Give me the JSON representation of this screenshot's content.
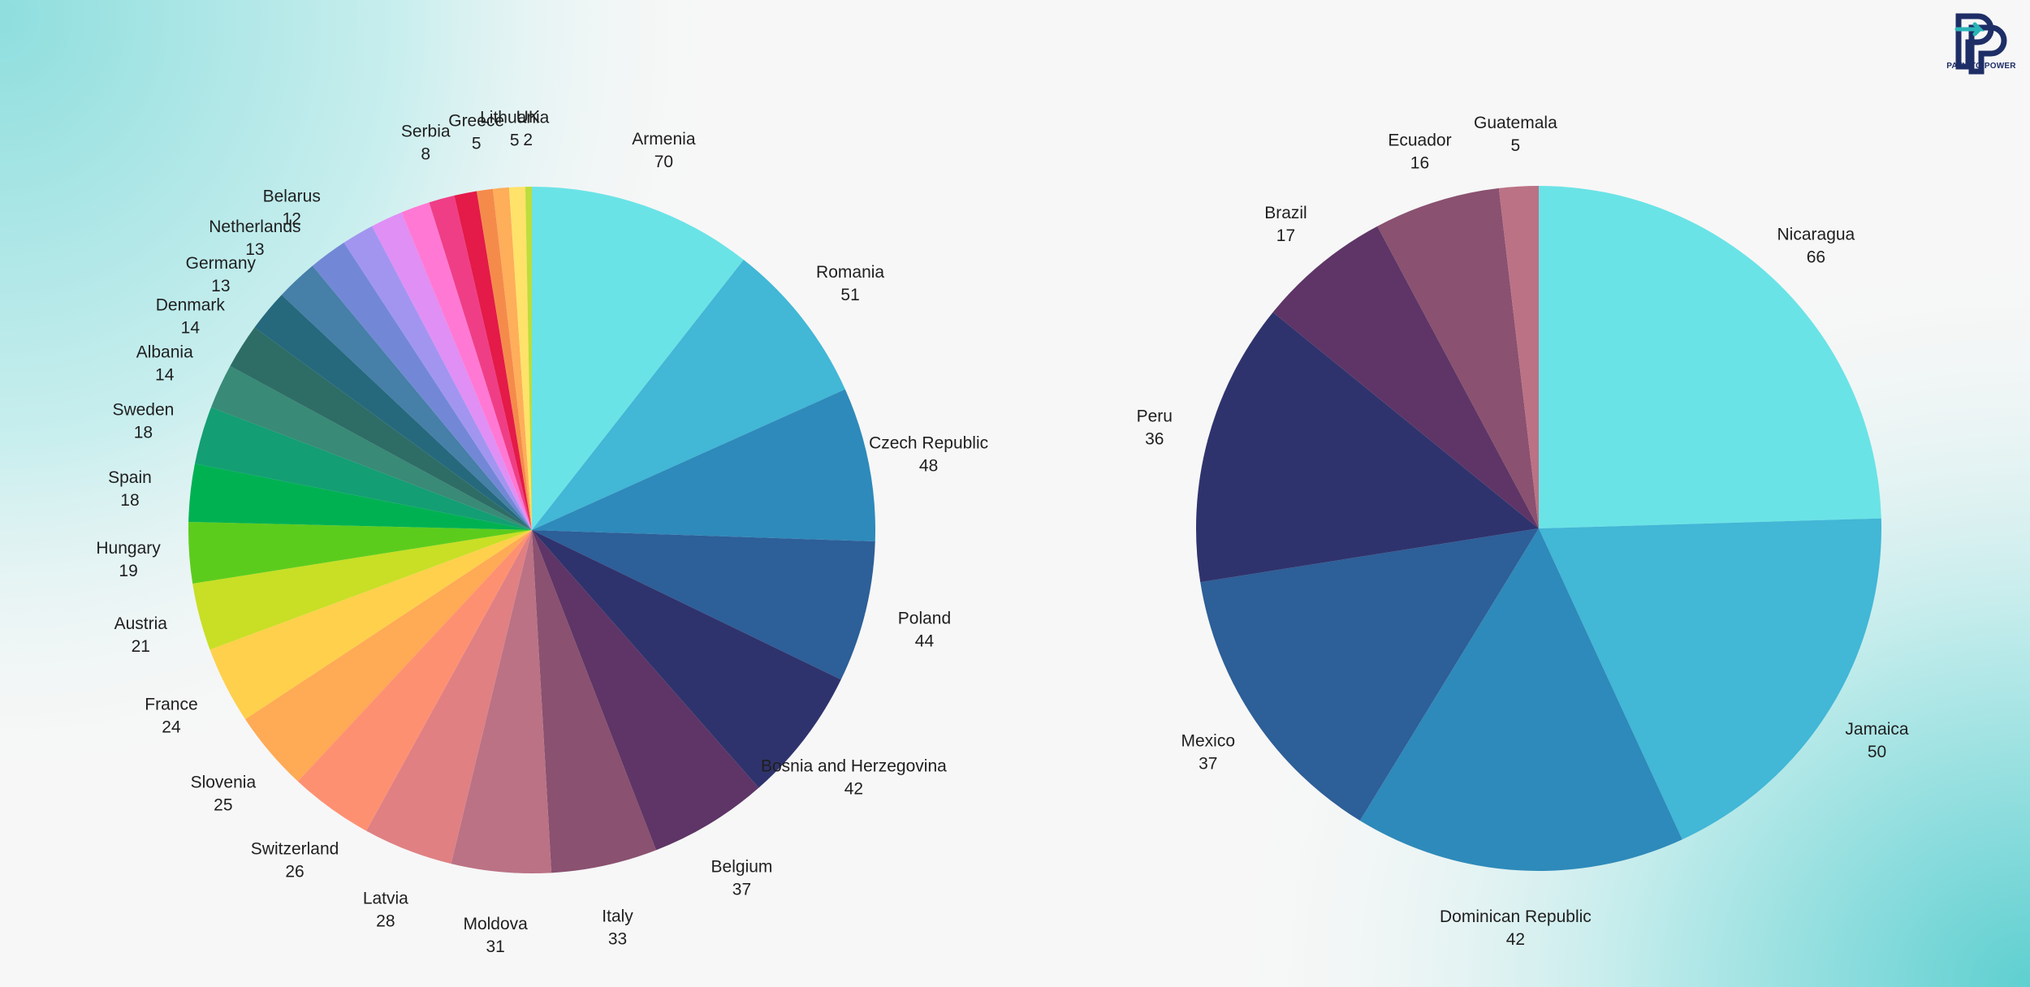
{
  "brand": {
    "logo_text": "PATH TO POWER",
    "colors": {
      "navy": "#1e2e66",
      "teal": "#2bb5b8"
    }
  },
  "chart_data": [
    {
      "type": "pie",
      "title": "",
      "start": "top",
      "direction": "clockwise",
      "slices": [
        {
          "label": "Armenia",
          "value": 70,
          "color": "#6ae3e6"
        },
        {
          "label": "Romania",
          "value": 51,
          "color": "#42b7d6"
        },
        {
          "label": "Czech Republic",
          "value": 48,
          "color": "#2e8aba"
        },
        {
          "label": "Poland",
          "value": 44,
          "color": "#2d5f98"
        },
        {
          "label": "Bosnia and Herzegovina",
          "value": 42,
          "color": "#2f336d"
        },
        {
          "label": "Belgium",
          "value": 37,
          "color": "#5e3566"
        },
        {
          "label": "Italy",
          "value": 33,
          "color": "#8a5170"
        },
        {
          "label": "Moldova",
          "value": 31,
          "color": "#bb7285"
        },
        {
          "label": "Latvia",
          "value": 28,
          "color": "#e08083"
        },
        {
          "label": "Switzerland",
          "value": 26,
          "color": "#fe9072"
        },
        {
          "label": "Slovenia",
          "value": 25,
          "color": "#ffaa55"
        },
        {
          "label": "France",
          "value": 24,
          "color": "#ffd04c"
        },
        {
          "label": "Austria",
          "value": 21,
          "color": "#c8df25"
        },
        {
          "label": "Hungary",
          "value": 19,
          "color": "#5ccc1c"
        },
        {
          "label": "Spain",
          "value": 18,
          "color": "#00b152"
        },
        {
          "label": "Sweden",
          "value": 18,
          "color": "#139e73"
        },
        {
          "label": "Albania",
          "value": 14,
          "color": "#398a77"
        },
        {
          "label": "Denmark",
          "value": 14,
          "color": "#2e6d66"
        },
        {
          "label": "Germany",
          "value": 13,
          "color": "#26697d"
        },
        {
          "label": "Netherlands",
          "value": 13,
          "color": "#467fa8"
        },
        {
          "label": "Belarus",
          "value": 12,
          "color": "#7288d6"
        },
        {
          "label": "",
          "value": 10,
          "color": "#a295f0"
        },
        {
          "label": "",
          "value": 10,
          "color": "#e08ff5"
        },
        {
          "label": "",
          "value": 9,
          "color": "#ff79d4"
        },
        {
          "label": "Serbia",
          "value": 8,
          "color": "#ef3e86"
        },
        {
          "label": "",
          "value": 7,
          "color": "#e41a48"
        },
        {
          "label": "Greece",
          "value": 5,
          "color": "#f58b4b"
        },
        {
          "label": "",
          "value": 5,
          "color": "#ffae5a"
        },
        {
          "label": "Lithuania",
          "value": 5,
          "color": "#ffe26a"
        },
        {
          "label": "UK",
          "value": 2,
          "color": "#bcdd3a"
        }
      ]
    },
    {
      "type": "pie",
      "title": "",
      "start": "top",
      "direction": "clockwise",
      "slices": [
        {
          "label": "Nicaragua",
          "value": 66,
          "color": "#6ae3e6"
        },
        {
          "label": "Jamaica",
          "value": 50,
          "color": "#42b7d6"
        },
        {
          "label": "Dominican Republic",
          "value": 42,
          "color": "#2e8aba"
        },
        {
          "label": "Mexico",
          "value": 37,
          "color": "#2d5f98"
        },
        {
          "label": "Peru",
          "value": 36,
          "color": "#2f336d"
        },
        {
          "label": "Brazil",
          "value": 17,
          "color": "#5e3566"
        },
        {
          "label": "Ecuador",
          "value": 16,
          "color": "#8a5170"
        },
        {
          "label": "Guatemala",
          "value": 5,
          "color": "#bb7285"
        }
      ]
    }
  ]
}
